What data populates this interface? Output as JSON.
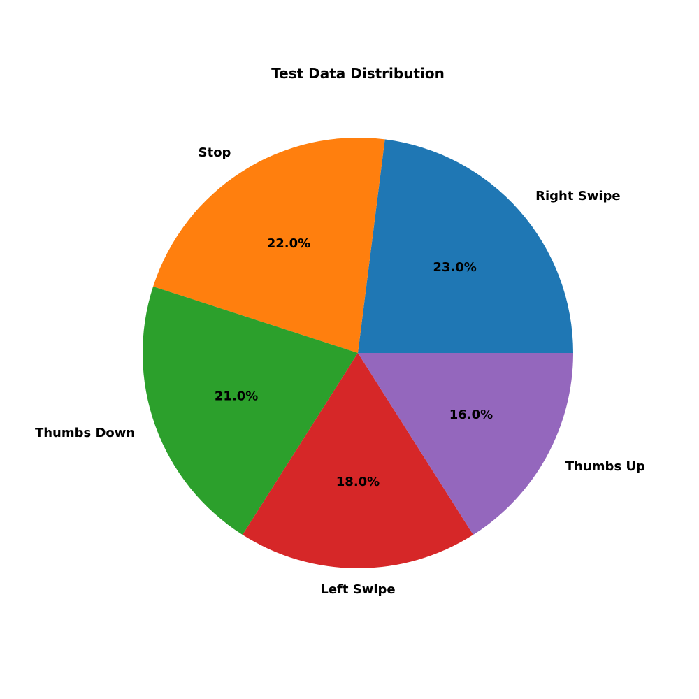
{
  "chart_data": {
    "type": "pie",
    "title": "Test Data Distribution",
    "categories": [
      "Right Swipe",
      "Stop",
      "Thumbs Down",
      "Left Swipe",
      "Thumbs Up"
    ],
    "values": [
      23.0,
      22.0,
      21.0,
      18.0,
      16.0
    ],
    "value_labels": [
      "23.0%",
      "22.0%",
      "21.0%",
      "18.0%",
      "16.0%"
    ],
    "colors": [
      "#1f77b4",
      "#ff7f0e",
      "#2ca02c",
      "#d62728",
      "#9467bd"
    ],
    "start_angle_deg": 0,
    "direction": "counterclockwise",
    "legend": "none"
  }
}
